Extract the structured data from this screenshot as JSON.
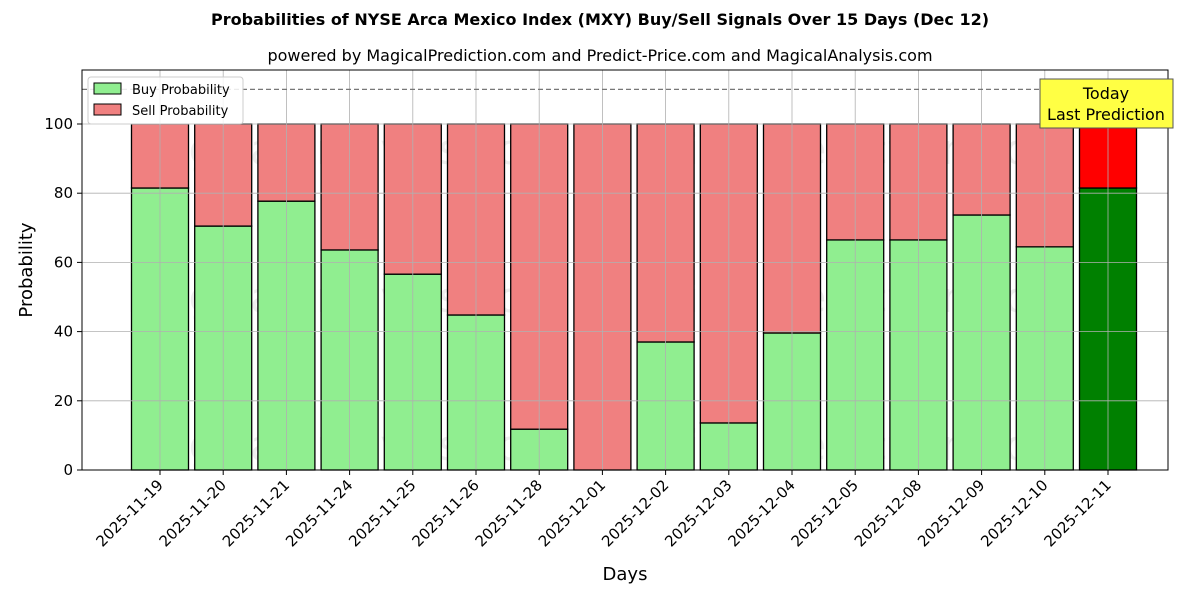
{
  "chart_data": {
    "type": "bar",
    "stacked": true,
    "title": "Probabilities of NYSE Arca Mexico Index (MXY) Buy/Sell Signals Over 15 Days (Dec 12)",
    "subtitle": "powered by MagicalPrediction.com and Predict-Price.com and MagicalAnalysis.com",
    "xlabel": "Days",
    "ylabel": "Probability",
    "ylim": [
      0,
      115
    ],
    "yticks": [
      0,
      20,
      40,
      60,
      80,
      100
    ],
    "grid": true,
    "legend_position": "upper left",
    "reference_line": 110,
    "categories": [
      "2025-11-19",
      "2025-11-20",
      "2025-11-21",
      "2025-11-24",
      "2025-11-25",
      "2025-11-26",
      "2025-11-28",
      "2025-12-01",
      "2025-12-02",
      "2025-12-03",
      "2025-12-04",
      "2025-12-05",
      "2025-12-08",
      "2025-12-09",
      "2025-12-10",
      "2025-12-11"
    ],
    "series": [
      {
        "name": "Buy Probability",
        "color": "#90ee90",
        "values": [
          81.5,
          70.5,
          77.7,
          63.6,
          56.6,
          44.8,
          11.8,
          0,
          37.0,
          13.6,
          39.6,
          66.5,
          66.5,
          73.7,
          64.5,
          81.5
        ]
      },
      {
        "name": "Sell Probability",
        "color": "#f08080",
        "values": [
          18.5,
          29.5,
          22.3,
          36.4,
          43.4,
          55.2,
          88.2,
          100,
          63.0,
          86.4,
          60.4,
          33.5,
          33.5,
          26.3,
          35.5,
          18.5
        ]
      }
    ],
    "highlight": {
      "index": 15,
      "buy_color": "#008000",
      "sell_color": "#ff0000"
    },
    "annotation": {
      "line1": "Today",
      "line2": "Last Prediction",
      "bg": "#ffff44"
    },
    "watermarks": [
      "MagicalAnalysis.com",
      "MagicalPrediction.com"
    ]
  }
}
